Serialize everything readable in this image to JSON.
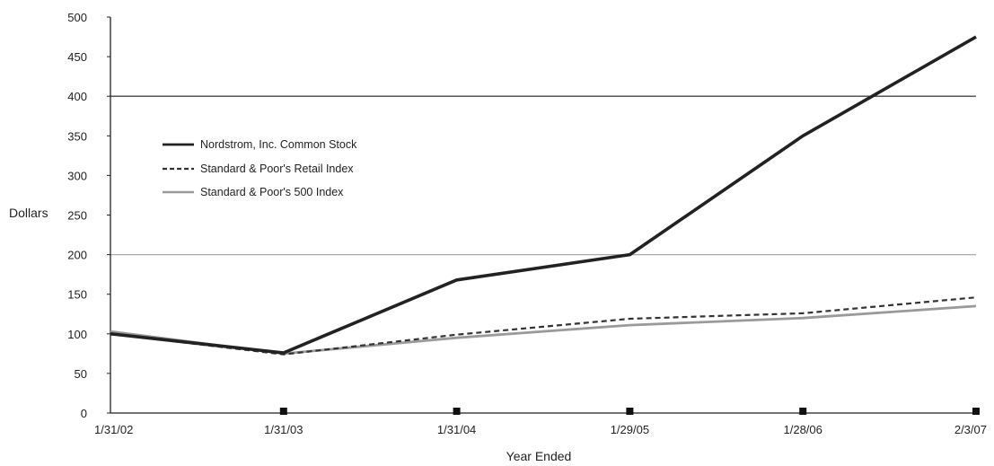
{
  "chart_data": {
    "type": "line",
    "title": "",
    "xlabel": "Year Ended",
    "ylabel": "Dollars",
    "categories": [
      "1/31/02",
      "1/31/03",
      "1/31/04",
      "1/29/05",
      "1/28/06",
      "2/3/07"
    ],
    "yticks": [
      "0",
      "50",
      "100",
      "150",
      "200",
      "250",
      "300",
      "350",
      "400",
      "450",
      "500"
    ],
    "ylim": [
      0,
      500
    ],
    "reference_lines": [
      {
        "value": 400,
        "color": "#444444"
      },
      {
        "value": 200,
        "color": "#aaaaaa"
      }
    ],
    "legend_position": "upper-left",
    "series": [
      {
        "name": "Nordstrom, Inc. Common Stock",
        "values": [
          100,
          76,
          168,
          200,
          350,
          475
        ],
        "color": "#222222",
        "style": "solid"
      },
      {
        "name": "Standard & Poor's Retail Index",
        "values": [
          100,
          74,
          99,
          119,
          126,
          146
        ],
        "color": "#333333",
        "style": "dashed"
      },
      {
        "name": "Standard & Poor's 500 Index",
        "values": [
          103,
          75,
          95,
          111,
          120,
          135
        ],
        "color": "#9a9a9a",
        "style": "solid"
      }
    ]
  }
}
